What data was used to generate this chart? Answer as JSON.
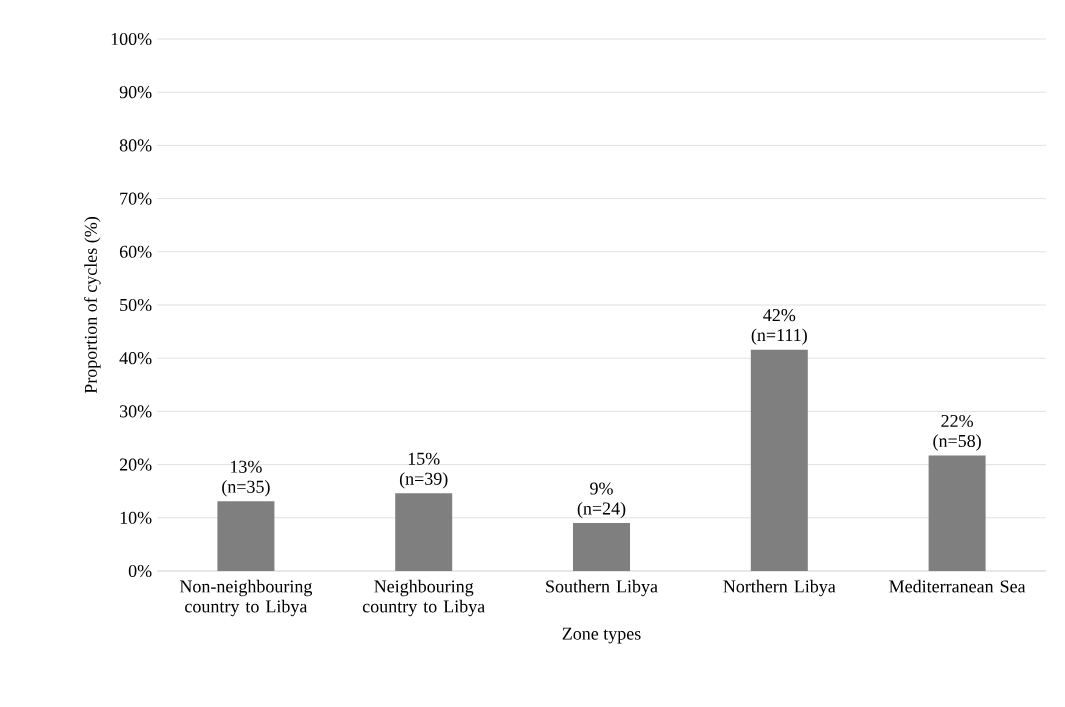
{
  "chart_data": {
    "type": "bar",
    "categories": [
      "Non-neighbouring country to Libya",
      "Neighbouring country to Libya",
      "Southern Libya",
      "Northern Libya",
      "Mediterranean Sea"
    ],
    "values": [
      13.1,
      14.6,
      9.0,
      41.6,
      21.7
    ],
    "value_labels": [
      "13% (n=35)",
      "15% (n=39)",
      "9% (n=24)",
      "42% (n=111)",
      "22% (n=58)"
    ],
    "color": "#7f7f7f",
    "xlabel": "Zone types",
    "ylabel": "Proportion of cycles (%)",
    "ylim": [
      0,
      100
    ],
    "yticks": [
      {
        "value": 0,
        "label": "0%"
      },
      {
        "value": 10,
        "label": "10%"
      },
      {
        "value": 20,
        "label": "20%"
      },
      {
        "value": 30,
        "label": "30%"
      },
      {
        "value": 40,
        "label": "40%"
      },
      {
        "value": 50,
        "label": "50%"
      },
      {
        "value": 60,
        "label": "60%"
      },
      {
        "value": 70,
        "label": "70%"
      },
      {
        "value": 80,
        "label": "80%"
      },
      {
        "value": 90,
        "label": "90%"
      },
      {
        "value": 100,
        "label": "100%"
      }
    ],
    "grid": "y"
  }
}
